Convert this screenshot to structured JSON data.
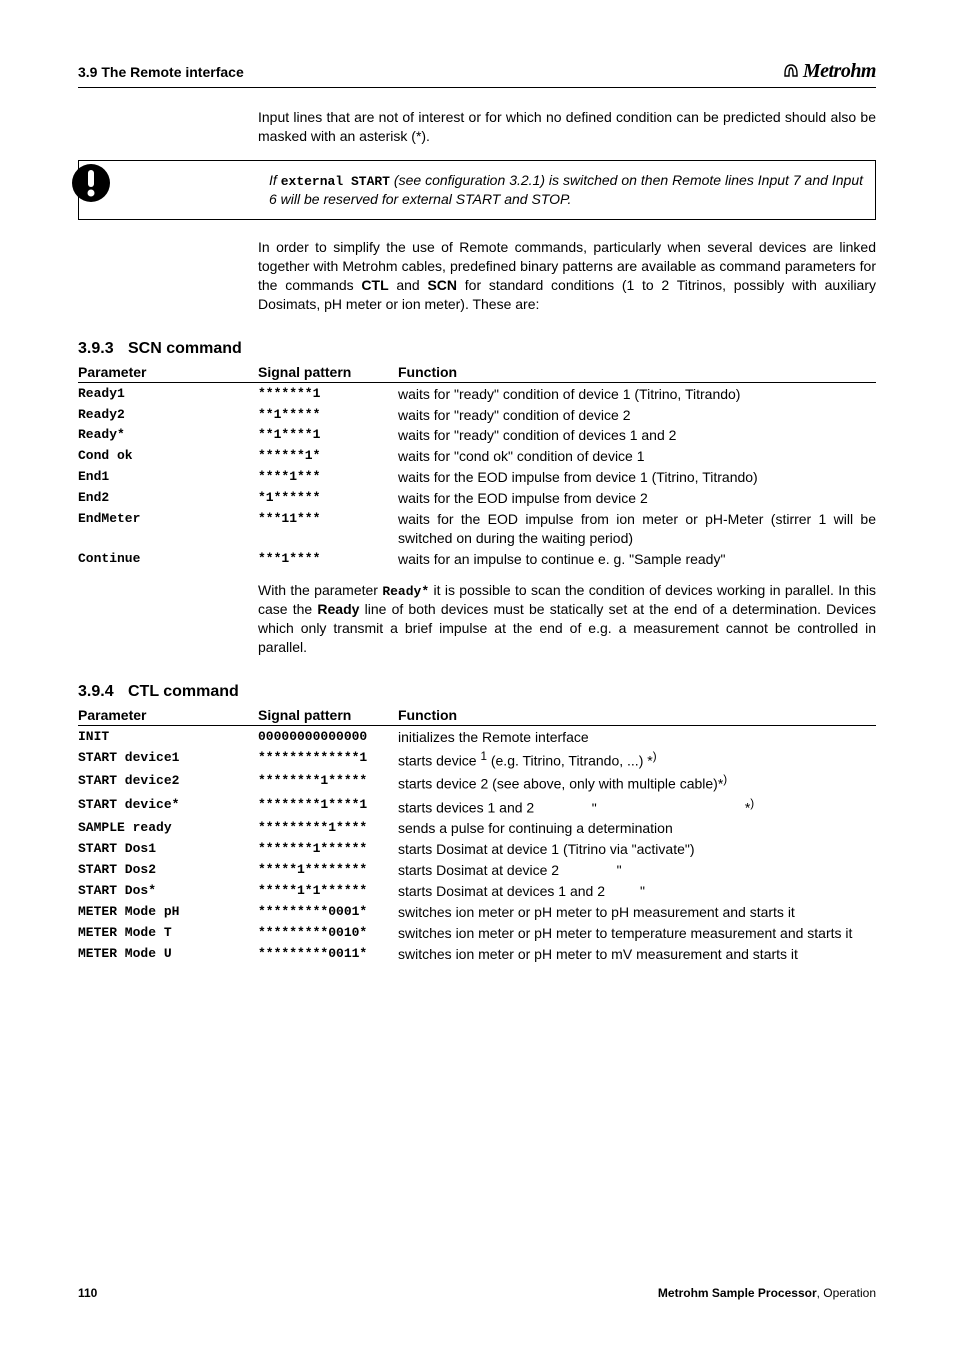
{
  "header": {
    "left": "3.9 The Remote interface",
    "brand_text": "Metrohm"
  },
  "para1": "Input lines that are not of interest or for which no defined condition can be predicted should also be masked with an asterisk (*).",
  "note": {
    "pre": "If ",
    "code": "external START",
    "post": " (see configuration 3.2.1) is switched on then Remote lines Input 7 and Input 6 will be reserved for external START and STOP."
  },
  "para2_pre": "In order to simplify the use of Remote commands, particularly when several devices are linked together with Metrohm cables, predefined binary patterns are available as command parameters for the commands ",
  "para2_ctl": "CTL",
  "para2_mid": " and ",
  "para2_scn": "SCN",
  "para2_post": " for standard conditions (1 to 2 Titrinos, possibly with auxiliary Dosimats, pH meter or ion meter). These are:",
  "sec393": {
    "num": "3.9.3",
    "title": "SCN command"
  },
  "table_headers": {
    "param": "Parameter",
    "sig": "Signal pattern",
    "func": "Function"
  },
  "scn_rows": [
    {
      "p": "Ready1",
      "s": "*******1",
      "f": "waits for \"ready\" condition of device 1 (Titrino, Titrando)"
    },
    {
      "p": "Ready2",
      "s": "**1*****",
      "f": "waits for \"ready\" condition of device 2"
    },
    {
      "p": "Ready*",
      "s": "**1****1",
      "f": "waits for \"ready\" condition of devices 1 and 2"
    },
    {
      "p": "Cond ok",
      "s": "******1*",
      "f": "waits for \"cond ok\" condition of device 1"
    },
    {
      "p": "End1",
      "s": "****1***",
      "f": "waits for the EOD impulse from device 1 (Titrino, Titrando)"
    },
    {
      "p": "End2",
      "s": "*1******",
      "f": "waits for the EOD impulse from device 2"
    },
    {
      "p": "EndMeter",
      "s": "***11***",
      "f": "waits for the EOD impulse from ion meter or pH-Meter (stirrer 1 will be switched on during the waiting period)"
    },
    {
      "p": "Continue",
      "s": "***1****",
      "f": "waits for an impulse to continue e. g. \"Sample ready\""
    }
  ],
  "scn_para_pre": "With the parameter ",
  "scn_para_code": "Ready*",
  "scn_para_mid": " it is possible to scan the condition of devices working in parallel. In this case the ",
  "scn_para_bold": "Ready",
  "scn_para_post": " line of both devices must be statically set at the end of a determination. Devices which only transmit a brief impulse at the end of e.g. a measurement cannot be controlled in parallel.",
  "sec394": {
    "num": "3.9.4",
    "title": "CTL command"
  },
  "ctl_rows": [
    {
      "p": "INIT",
      "s": "00000000000000",
      "f": "initializes the Remote interface"
    },
    {
      "p": "START device1",
      "s": "*************1",
      "f_html": "starts device <sup>1</sup> (e.g. Titrino, Titrando, ...) *<sup>)</sup>"
    },
    {
      "p": "START device2",
      "s": "********1*****",
      "f_html": "starts device 2  (see above, only with multiple cable)*<sup>)</sup>"
    },
    {
      "p": "START device*",
      "s": "********1****1",
      "f_html": "starts devices 1 and 2<span class=\"quote-spacer\">\"</span><span class=\"star-right\">*<sup>)</sup></span>"
    },
    {
      "p": "SAMPLE ready",
      "s": "*********1****",
      "f": "sends a pulse for continuing a determination"
    },
    {
      "p": "START Dos1",
      "s": "*******1******",
      "f": "starts Dosimat at device 1 (Titrino via \"activate\")"
    },
    {
      "p": "START Dos2",
      "s": "*****1********",
      "f_html": "starts Dosimat at device 2<span class=\"quote-spacer\">\"</span>"
    },
    {
      "p": "START Dos*",
      "s": "*****1*1******",
      "f_html": "starts Dosimat at devices 1 and 2<span style=\"display:inline-block;width:40px;text-align:right\">\"</span>"
    },
    {
      "p": "METER Mode pH",
      "s": "*********0001*",
      "f": "switches ion meter or pH meter to pH measurement and starts it"
    },
    {
      "p": "METER Mode T",
      "s": "*********0010*",
      "f": "switches ion meter or pH meter to temperature measurement and starts it"
    },
    {
      "p": "METER Mode U",
      "s": "*********0011*",
      "f": "switches ion meter or pH meter to mV measurement and starts it"
    }
  ],
  "footer": {
    "page": "110",
    "right_bold": "Metrohm Sample Processor",
    "right_rest": ", Operation"
  }
}
